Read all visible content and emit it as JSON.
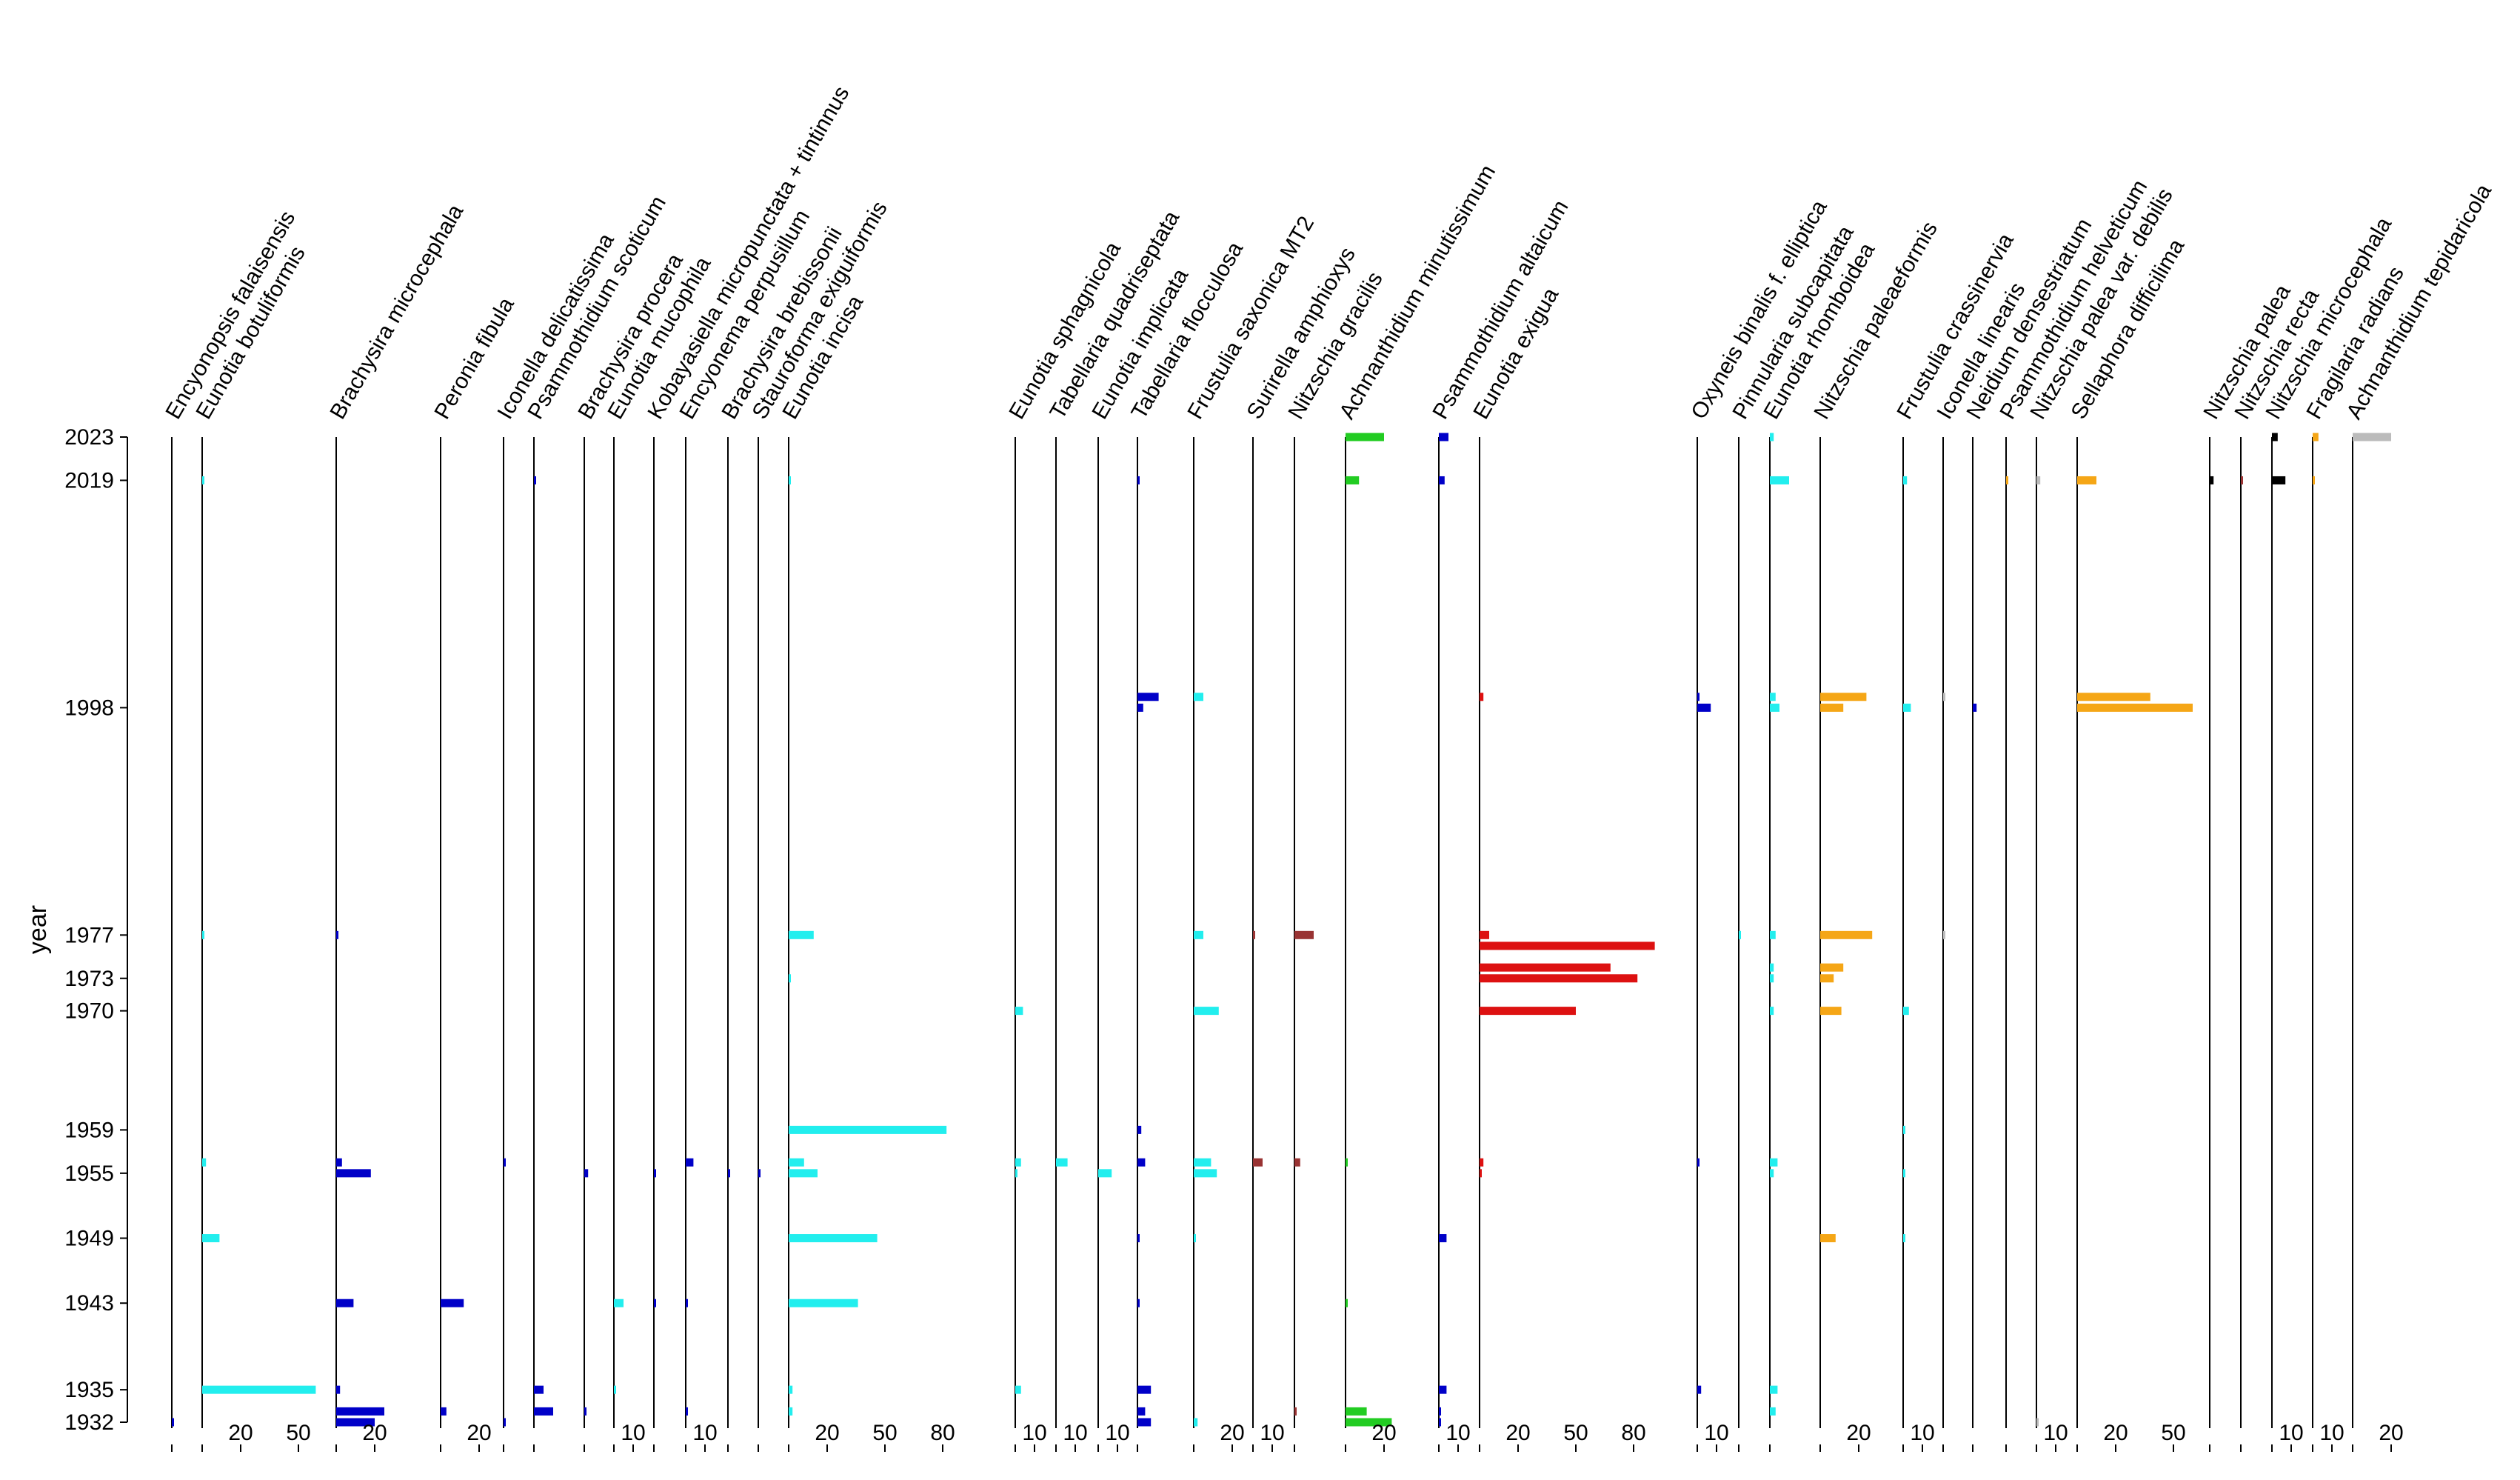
{
  "chart_data": {
    "type": "bar",
    "orientation": "horizontal",
    "title": "",
    "ylabel": "year",
    "year_ticks": [
      2023,
      2019,
      1998,
      1977,
      1973,
      1970,
      1959,
      1955,
      1949,
      1943,
      1935,
      1932
    ],
    "ylim": [
      1931,
      2024
    ],
    "panels": [
      {
        "taxon": "Encyonopsis falaisensis",
        "color": "#0000c8",
        "xticks": [],
        "scale": 50,
        "values": {
          "1932": 1
        }
      },
      {
        "taxon": "Eunotia botuliformis",
        "color": "#22eeee",
        "xticks": [
          20,
          50
        ],
        "scale": 60,
        "values": {
          "2019": 1,
          "1977": 1,
          "1956": 2,
          "1949": 9,
          "1935": 59
        }
      },
      {
        "taxon": "Brachysira microcephala",
        "color": "#0000c8",
        "xticks": [
          20
        ],
        "scale": 40,
        "values": {
          "1977": 1,
          "1956": 3,
          "1955": 18,
          "1943": 9,
          "1935": 2,
          "1933": 25,
          "1932": 20
        }
      },
      {
        "taxon": "Peronia fibula",
        "color": "#0000c8",
        "xticks": [
          20
        ],
        "scale": 40,
        "values": {
          "1943": 12,
          "1933": 3
        }
      },
      {
        "taxon": "Iconella delicatissima",
        "color": "#0000c8",
        "xticks": [],
        "scale": 30,
        "values": {
          "1956": 1,
          "1932": 1
        }
      },
      {
        "taxon": "Psammothidium scoticum",
        "color": "#0000c8",
        "xticks": [],
        "scale": 30,
        "values": {
          "2019": 1,
          "1935": 5,
          "1933": 10
        }
      },
      {
        "taxon": "Brachysira procera",
        "color": "#0000c8",
        "xticks": [],
        "scale": 30,
        "values": {
          "1955": 2,
          "1933": 1
        }
      },
      {
        "taxon": "Eunotia mucophila",
        "color": "#22eeee",
        "xticks": [
          10
        ],
        "scale": 30,
        "values": {
          "1943": 5,
          "1935": 1
        }
      },
      {
        "taxon": "Kobayasiella micropunctata + tintinnus",
        "color": "#0000c8",
        "xticks": [],
        "scale": 30,
        "values": {
          "1955": 1,
          "1943": 1
        }
      },
      {
        "taxon": "Encyonema perpusillum",
        "color": "#0000c8",
        "xticks": [
          10
        ],
        "scale": 30,
        "values": {
          "1956": 4,
          "1943": 1,
          "1933": 1
        }
      },
      {
        "taxon": "Brachysira brebissonii",
        "color": "#0000c8",
        "xticks": [],
        "scale": 30,
        "values": {
          "1955": 1
        }
      },
      {
        "taxon": "Stauroforma exiguiformis",
        "color": "#0000c8",
        "xticks": [],
        "scale": 30,
        "values": {
          "1955": 1
        }
      },
      {
        "taxon": "Eunotia incisa",
        "color": "#22eeee",
        "xticks": [
          20,
          50,
          80
        ],
        "scale": 100,
        "values": {
          "2019": 1,
          "1977": 13,
          "1973": 1,
          "1959": 82,
          "1956": 8,
          "1955": 15,
          "1949": 46,
          "1943": 36,
          "1935": 2,
          "1933": 2
        }
      },
      {
        "taxon": "Eunotia sphagnicola",
        "color": "#22eeee",
        "xticks": [
          10
        ],
        "scale": 30,
        "values": {
          "1970": 4,
          "1956": 3,
          "1955": 1,
          "1935": 3
        }
      },
      {
        "taxon": "Tabellaria quadriseptata",
        "color": "#22eeee",
        "xticks": [
          10
        ],
        "scale": 30,
        "values": {
          "1956": 6
        }
      },
      {
        "taxon": "Eunotia implicata",
        "color": "#22eeee",
        "xticks": [
          10
        ],
        "scale": 30,
        "values": {
          "1955": 7
        }
      },
      {
        "taxon": "Tabellaria flocculosa",
        "color": "#0000c8",
        "xticks": [],
        "scale": 30,
        "values": {
          "2019": 1,
          "1999": 11,
          "1998": 3,
          "1959": 2,
          "1956": 4,
          "1949": 1,
          "1943": 1,
          "1935": 7,
          "1933": 4,
          "1932": 7
        }
      },
      {
        "taxon": "Frustulia saxonica MT2",
        "color": "#22eeee",
        "xticks": [
          20
        ],
        "scale": 40,
        "values": {
          "1999": 5,
          "1977": 5,
          "1970": 13,
          "1956": 9,
          "1955": 12,
          "1949": 1,
          "1932": 2
        }
      },
      {
        "taxon": "Surirella amphioxys",
        "color": "#993333",
        "xticks": [
          10
        ],
        "scale": 30,
        "values": {
          "1977": 1,
          "1956": 5
        }
      },
      {
        "taxon": "Nitzschia gracilis",
        "color": "#993333",
        "xticks": [],
        "scale": 30,
        "values": {
          "1977": 10,
          "1956": 3,
          "1933": 1
        }
      },
      {
        "taxon": "Achnanthidium minutissimum",
        "color": "#22cc22",
        "xticks": [
          20
        ],
        "scale": 40,
        "values": {
          "2023": 20,
          "2019": 7,
          "1956": 1,
          "1943": 1,
          "1933": 11,
          "1932": 24
        }
      },
      {
        "taxon": "Psammothidium altaicum",
        "color": "#0000c8",
        "xticks": [
          10
        ],
        "scale": 30,
        "values": {
          "2023": 5,
          "2019": 3,
          "1949": 4,
          "1935": 4,
          "1933": 1,
          "1932": 1
        }
      },
      {
        "taxon": "Eunotia exigua",
        "color": "#dd1111",
        "xticks": [
          20,
          50,
          80
        ],
        "scale": 100,
        "values": {
          "1999": 2,
          "1977": 5,
          "1976": 91,
          "1974": 68,
          "1973": 82,
          "1970": 50,
          "1956": 2,
          "1955": 1
        }
      },
      {
        "taxon": "Oxyneis binalis f. elliptica",
        "color": "#0000c8",
        "xticks": [
          10
        ],
        "scale": 30,
        "values": {
          "1999": 1,
          "1998": 7,
          "1956": 1,
          "1935": 2
        }
      },
      {
        "taxon": "Pinnularia subcapitata",
        "color": "#22eeee",
        "xticks": [],
        "scale": 30,
        "values": {
          "1977": 1
        }
      },
      {
        "taxon": "Eunotia rhomboidea",
        "color": "#22eeee",
        "xticks": [],
        "scale": 30,
        "values": {
          "2023": 2,
          "2019": 10,
          "1999": 3,
          "1998": 5,
          "1977": 3,
          "1974": 2,
          "1973": 2,
          "1970": 2,
          "1956": 4,
          "1955": 2,
          "1935": 4,
          "1933": 3
        }
      },
      {
        "taxon": "Nitzschia paleaeformis",
        "color": "#f5a616",
        "xticks": [
          20
        ],
        "scale": 40,
        "values": {
          "1999": 24,
          "1998": 12,
          "1977": 27,
          "1974": 12,
          "1973": 7,
          "1970": 11,
          "1949": 8
        }
      },
      {
        "taxon": "Frustulia crassinervia",
        "color": "#22eeee",
        "xticks": [
          10
        ],
        "scale": 30,
        "values": {
          "2019": 2,
          "1998": 4,
          "1970": 3,
          "1959": 1,
          "1955": 1,
          "1949": 1
        }
      },
      {
        "taxon": "Iconella linearis",
        "color": "#bbbbbb",
        "xticks": [],
        "scale": 30,
        "values": {
          "1999": 1,
          "1977": 1
        }
      },
      {
        "taxon": "Neidium densestriatum",
        "color": "#0000c8",
        "xticks": [],
        "scale": 30,
        "values": {
          "1998": 2
        }
      },
      {
        "taxon": "Psammothidium helveticum",
        "color": "#f5a616",
        "xticks": [],
        "scale": 30,
        "values": {
          "2019": 1
        }
      },
      {
        "taxon": "Nitzschia palea var. debilis",
        "color": "#bbbbbb",
        "xticks": [
          10
        ],
        "scale": 30,
        "values": {
          "2019": 2,
          "1932": 1
        }
      },
      {
        "taxon": "Sellaphora difficilima",
        "color": "#f5a616",
        "xticks": [
          20,
          50
        ],
        "scale": 60,
        "values": {
          "2019": 10,
          "1999": 38,
          "1998": 60
        }
      },
      {
        "taxon": "Nitzschia palea",
        "color": "#000000",
        "xticks": [],
        "scale": 30,
        "values": {
          "2019": 2
        }
      },
      {
        "taxon": "Nitzschia recta",
        "color": "#993333",
        "xticks": [],
        "scale": 30,
        "values": {
          "2019": 1
        }
      },
      {
        "taxon": "Nitzschia microcephala",
        "color": "#000000",
        "xticks": [
          10
        ],
        "scale": 30,
        "values": {
          "2023": 3,
          "2019": 7
        }
      },
      {
        "taxon": "Fragilaria radians",
        "color": "#f5a616",
        "xticks": [
          10
        ],
        "scale": 30,
        "values": {
          "2023": 3,
          "2019": 1
        }
      },
      {
        "taxon": "Achnanthidium tepidaricola",
        "color": "#bbbbbb",
        "xticks": [
          20
        ],
        "scale": 40,
        "values": {
          "2023": 20
        }
      }
    ]
  }
}
